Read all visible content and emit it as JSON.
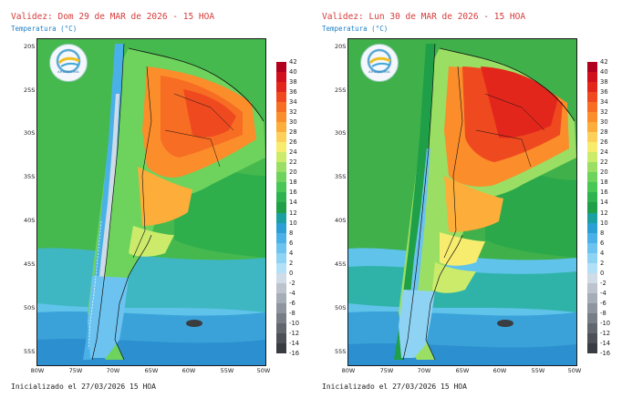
{
  "panels": [
    {
      "validity": "Validez: Dom 29 de MAR de 2026 - 15 HOA",
      "subtitle": "Temperatura (°C)",
      "init": "Inicializado el 27/03/2026 15 HOA",
      "variant": "day1"
    },
    {
      "validity": "Validez: Lun 30 de MAR de 2026 - 15 HOA",
      "subtitle": "Temperatura (°C)",
      "init": "Inicializado el 27/03/2026 15 HOA",
      "variant": "day2"
    }
  ],
  "logo": {
    "text": "ARGENTINA",
    "icon": "smn-logo-icon"
  },
  "latitudes": [
    "20S",
    "25S",
    "30S",
    "35S",
    "40S",
    "45S",
    "50S",
    "55S"
  ],
  "longitudes": [
    "80W",
    "75W",
    "70W",
    "65W",
    "60W",
    "55W",
    "50W"
  ],
  "colorbar": {
    "labels": [
      "42",
      "40",
      "38",
      "36",
      "34",
      "32",
      "30",
      "28",
      "26",
      "24",
      "22",
      "20",
      "18",
      "16",
      "14",
      "12",
      "10",
      "8",
      "6",
      "4",
      "2",
      "0",
      "-2",
      "-4",
      "-6",
      "-8",
      "-10",
      "-12",
      "-14",
      "-16"
    ],
    "colors": [
      "#b0001e",
      "#d0101c",
      "#e3261c",
      "#ef4a1f",
      "#f76d23",
      "#fb8d2b",
      "#fcad3a",
      "#fdd05a",
      "#f8ec6f",
      "#cdeb6b",
      "#9adf63",
      "#6dd35c",
      "#48c656",
      "#2fb350",
      "#1f9f47",
      "#1aa0a0",
      "#2a9fd6",
      "#4ab1e8",
      "#6cc3f0",
      "#8fd3f4",
      "#b2e1f7",
      "#cfdbe6",
      "#bcc3cc",
      "#a5adb6",
      "#8e959e",
      "#787e86",
      "#62676e",
      "#4d5157",
      "#393c40"
    ]
  }
}
